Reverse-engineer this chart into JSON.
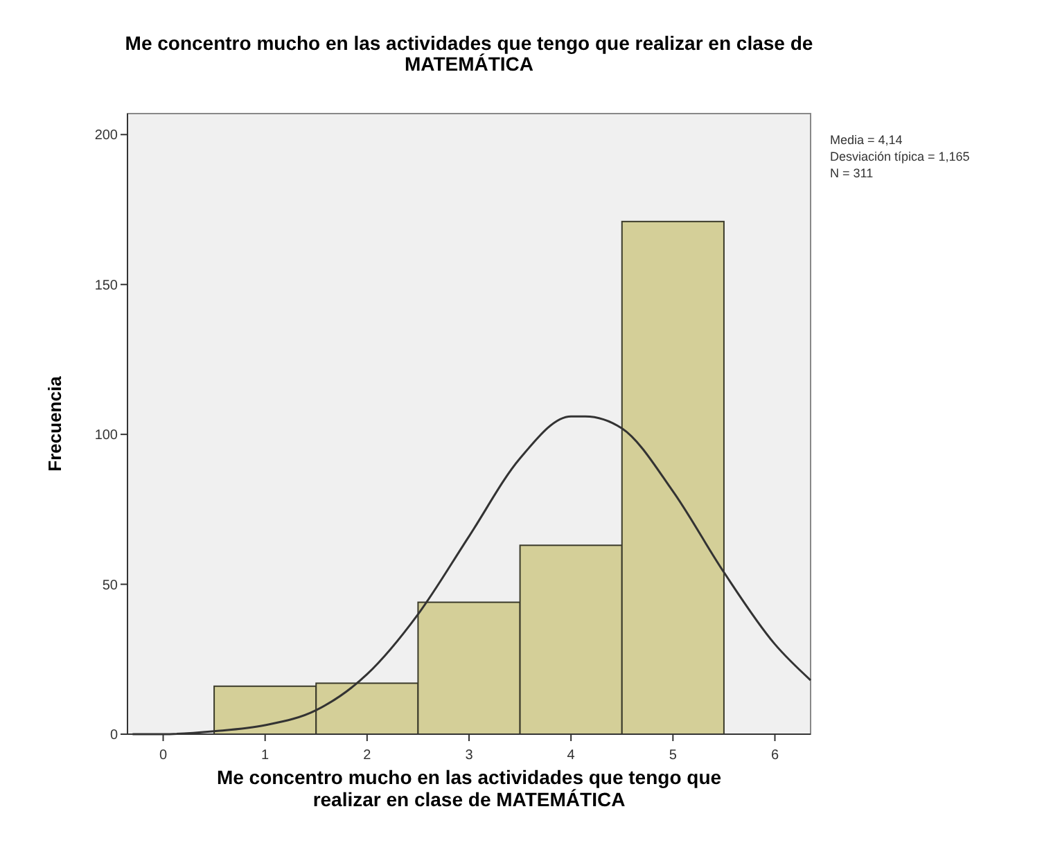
{
  "chart_data": {
    "type": "histogram",
    "title": "Me concentro mucho en las actividades que tengo que realizar en clase de MATEMÁTICA",
    "xlabel": "Me concentro mucho en las actividades que tengo que realizar en clase de MATEMÁTICA",
    "ylabel": "Frecuencia",
    "bins": [
      0.5,
      1.5,
      2.5,
      3.5,
      4.5,
      5.5
    ],
    "values": [
      16,
      17,
      44,
      63,
      171
    ],
    "color": "#d4cf98",
    "series": [
      {
        "type": "line",
        "color": "#333333",
        "x": [
          -0.3,
          0,
          0.5,
          1,
          1.5,
          2,
          2.5,
          3,
          3.5,
          4,
          4.14,
          4.5,
          5,
          5.5,
          6,
          6.35
        ],
        "values": [
          0,
          0,
          1,
          3,
          8,
          20,
          40,
          66,
          92,
          106,
          106,
          102,
          81,
          54,
          30,
          18
        ]
      }
    ],
    "xlim": [
      -0.35,
      6.35
    ],
    "xticks": [
      0,
      1,
      2,
      3,
      4,
      5,
      6
    ],
    "ylim": [
      0,
      207
    ],
    "yticks": [
      0,
      50,
      100,
      150,
      200
    ],
    "grid": false,
    "annotations": [
      "Media = 4,14",
      "Desviación típica = 1,165",
      "N = 311"
    ]
  }
}
